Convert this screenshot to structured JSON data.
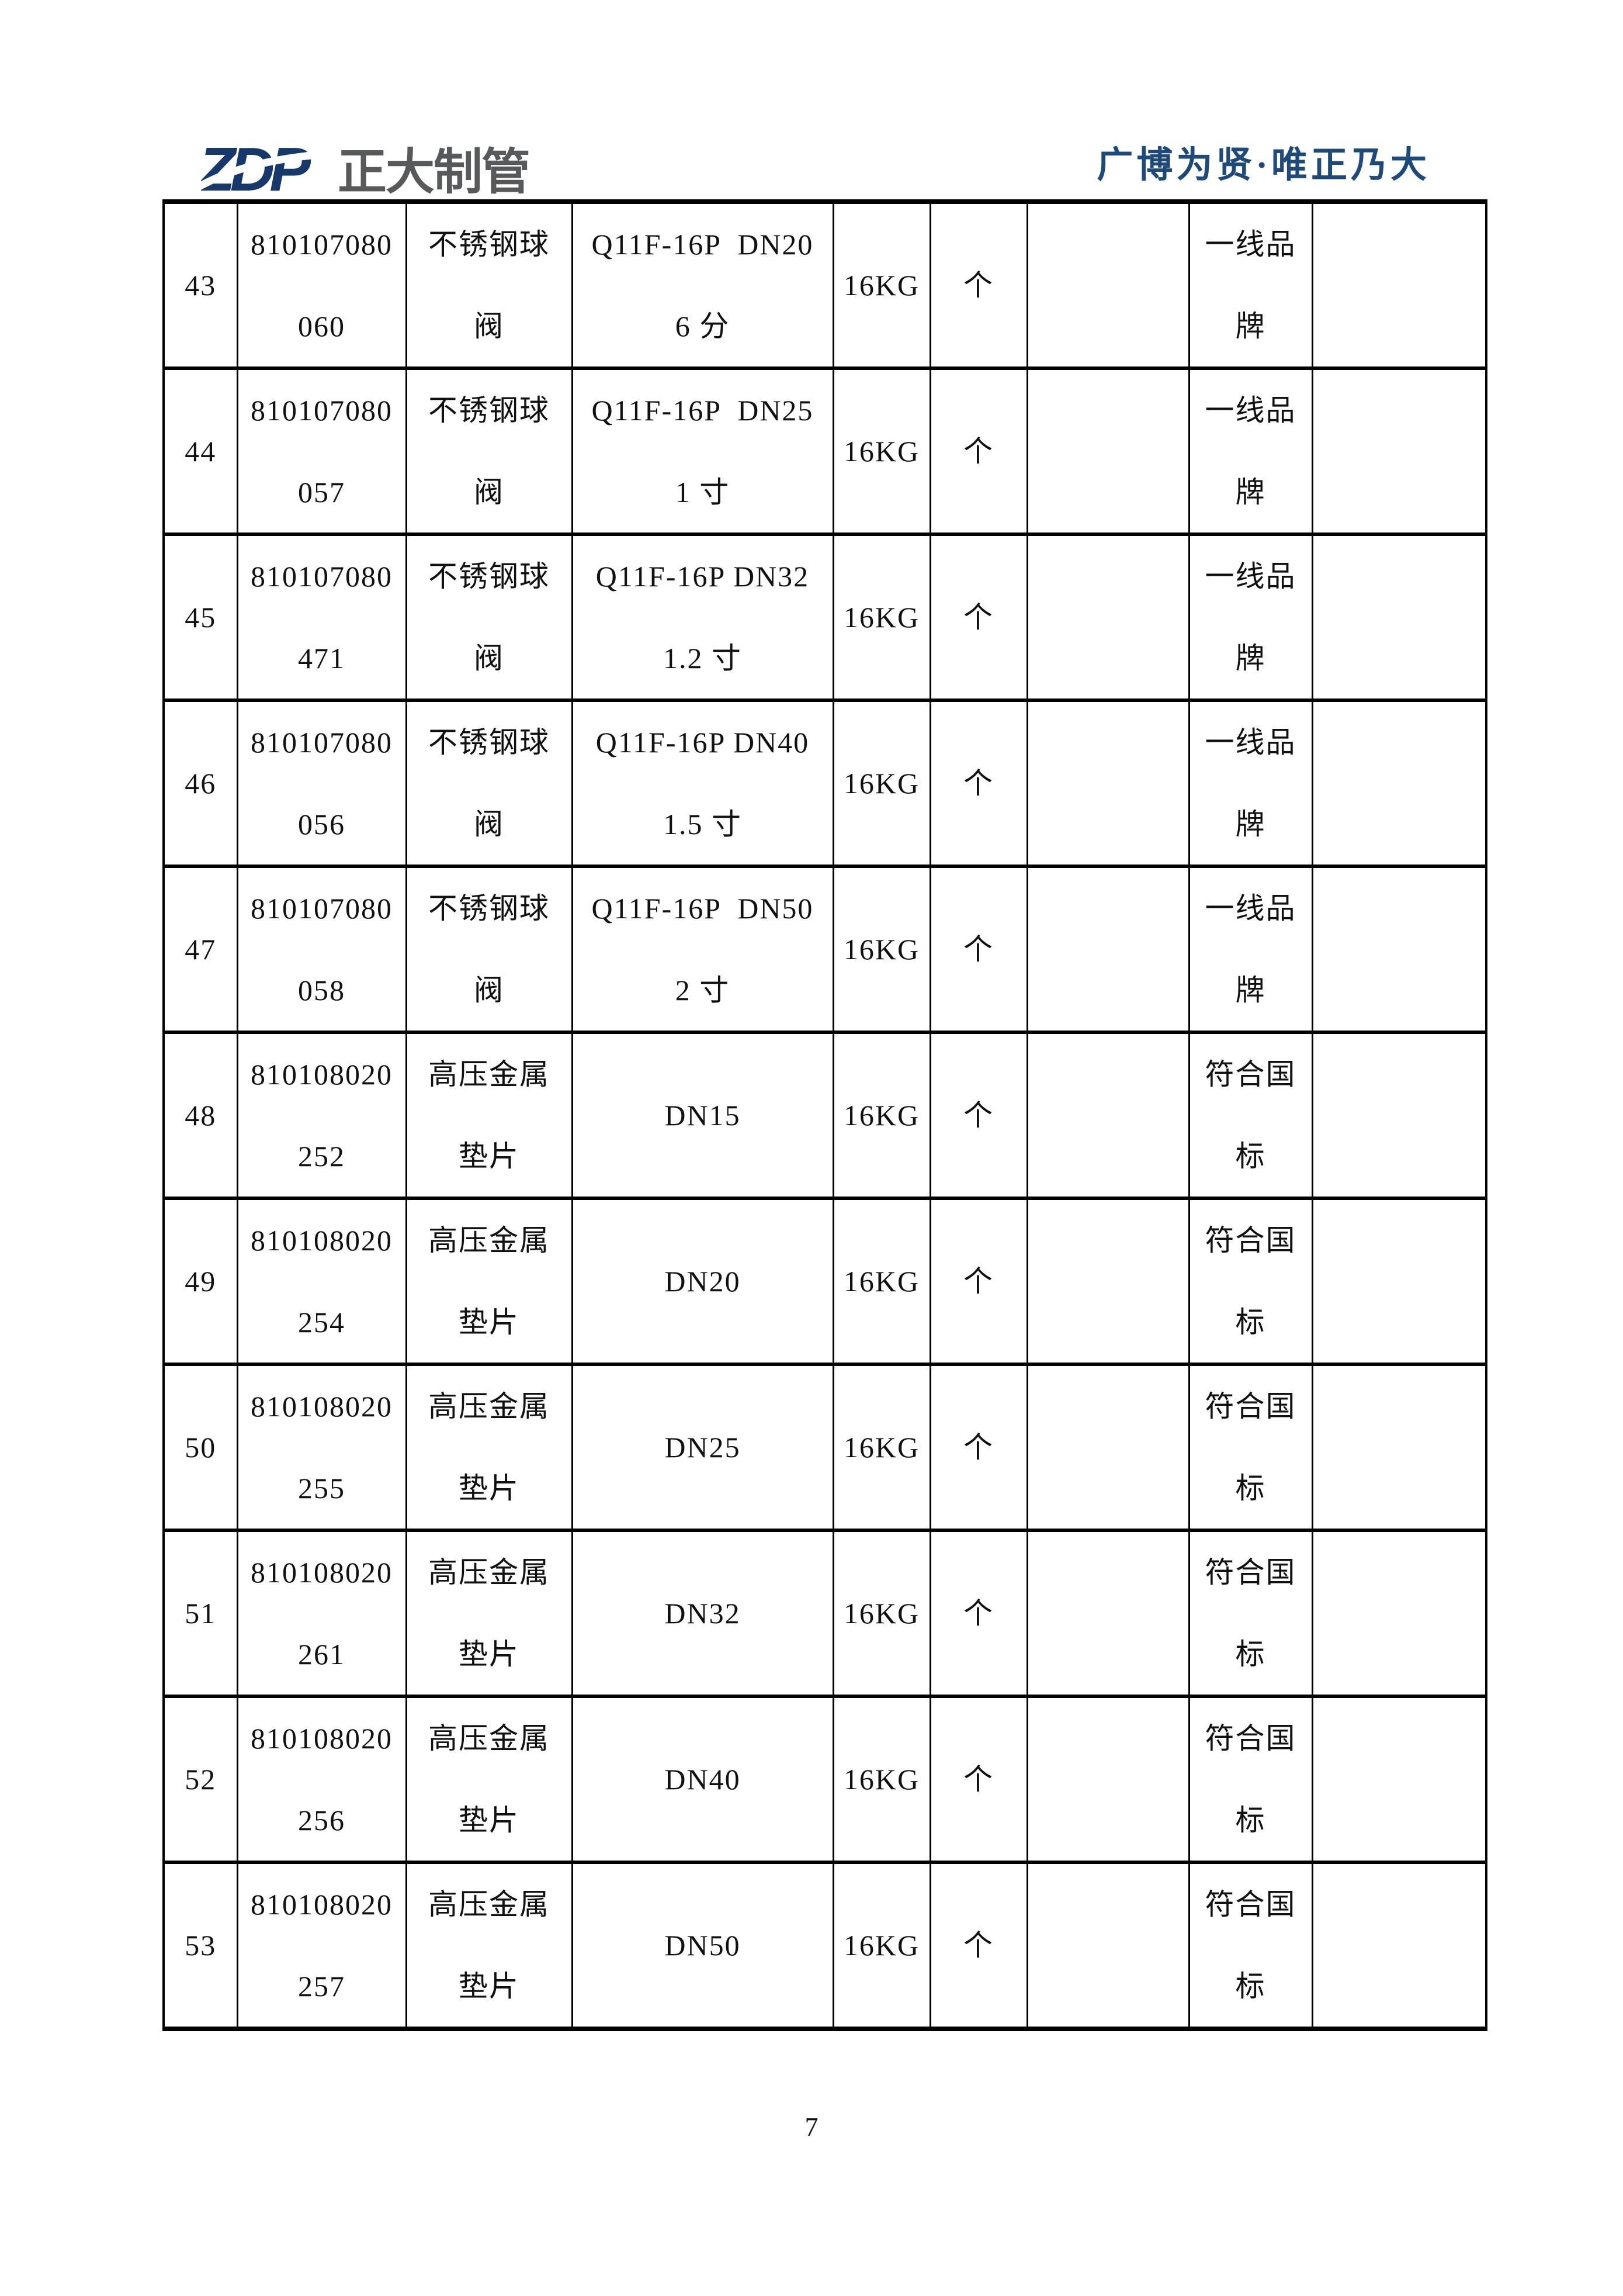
{
  "header": {
    "logo_zdp": "ZDP",
    "logo_cn": "正大制管",
    "tagline": "广博为贤·唯正乃大"
  },
  "colors": {
    "logo_navy": "#17386b",
    "logo_gray": "#58595b",
    "tagline_blue": "#1d4a7a",
    "line_black": "#000000"
  },
  "table": {
    "rows": [
      {
        "no": "43",
        "code": [
          "810107080",
          "060"
        ],
        "name": [
          "不锈钢球",
          "阀"
        ],
        "spec": [
          "Q11F-16P  DN20",
          "6 分"
        ],
        "pressure": "16KG",
        "unit": "个",
        "quantity": "",
        "note": [
          "一线品",
          "牌"
        ],
        "remark": ""
      },
      {
        "no": "44",
        "code": [
          "810107080",
          "057"
        ],
        "name": [
          "不锈钢球",
          "阀"
        ],
        "spec": [
          "Q11F-16P  DN25",
          "1 寸"
        ],
        "pressure": "16KG",
        "unit": "个",
        "quantity": "",
        "note": [
          "一线品",
          "牌"
        ],
        "remark": ""
      },
      {
        "no": "45",
        "code": [
          "810107080",
          "471"
        ],
        "name": [
          "不锈钢球",
          "阀"
        ],
        "spec": [
          "Q11F-16P DN32",
          "1.2 寸"
        ],
        "pressure": "16KG",
        "unit": "个",
        "quantity": "",
        "note": [
          "一线品",
          "牌"
        ],
        "remark": ""
      },
      {
        "no": "46",
        "code": [
          "810107080",
          "056"
        ],
        "name": [
          "不锈钢球",
          "阀"
        ],
        "spec": [
          "Q11F-16P DN40",
          "1.5 寸"
        ],
        "pressure": "16KG",
        "unit": "个",
        "quantity": "",
        "note": [
          "一线品",
          "牌"
        ],
        "remark": ""
      },
      {
        "no": "47",
        "code": [
          "810107080",
          "058"
        ],
        "name": [
          "不锈钢球",
          "阀"
        ],
        "spec": [
          "Q11F-16P  DN50",
          "2 寸"
        ],
        "pressure": "16KG",
        "unit": "个",
        "quantity": "",
        "note": [
          "一线品",
          "牌"
        ],
        "remark": ""
      },
      {
        "no": "48",
        "code": [
          "810108020",
          "252"
        ],
        "name": [
          "高压金属",
          "垫片"
        ],
        "spec": [
          "DN15"
        ],
        "pressure": "16KG",
        "unit": "个",
        "quantity": "",
        "note": [
          "符合国",
          "标"
        ],
        "remark": ""
      },
      {
        "no": "49",
        "code": [
          "810108020",
          "254"
        ],
        "name": [
          "高压金属",
          "垫片"
        ],
        "spec": [
          "DN20"
        ],
        "pressure": "16KG",
        "unit": "个",
        "quantity": "",
        "note": [
          "符合国",
          "标"
        ],
        "remark": ""
      },
      {
        "no": "50",
        "code": [
          "810108020",
          "255"
        ],
        "name": [
          "高压金属",
          "垫片"
        ],
        "spec": [
          "DN25"
        ],
        "pressure": "16KG",
        "unit": "个",
        "quantity": "",
        "note": [
          "符合国",
          "标"
        ],
        "remark": ""
      },
      {
        "no": "51",
        "code": [
          "810108020",
          "261"
        ],
        "name": [
          "高压金属",
          "垫片"
        ],
        "spec": [
          "DN32"
        ],
        "pressure": "16KG",
        "unit": "个",
        "quantity": "",
        "note": [
          "符合国",
          "标"
        ],
        "remark": ""
      },
      {
        "no": "52",
        "code": [
          "810108020",
          "256"
        ],
        "name": [
          "高压金属",
          "垫片"
        ],
        "spec": [
          "DN40"
        ],
        "pressure": "16KG",
        "unit": "个",
        "quantity": "",
        "note": [
          "符合国",
          "标"
        ],
        "remark": ""
      },
      {
        "no": "53",
        "code": [
          "810108020",
          "257"
        ],
        "name": [
          "高压金属",
          "垫片"
        ],
        "spec": [
          "DN50"
        ],
        "pressure": "16KG",
        "unit": "个",
        "quantity": "",
        "note": [
          "符合国",
          "标"
        ],
        "remark": ""
      }
    ]
  },
  "footer": {
    "page_number": "7"
  }
}
